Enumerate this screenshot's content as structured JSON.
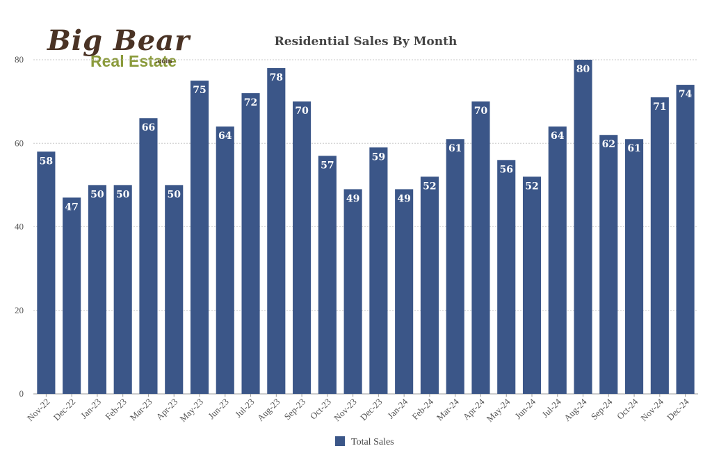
{
  "logo": {
    "line1": "Big Bear",
    "line2": "Real Estate",
    "suffix": ".com",
    "color_dark": "#4a3325",
    "color_green": "#8a9a3a"
  },
  "colors": {
    "bar": "#3b5688",
    "grid": "#c8c8c8",
    "axis": "#999999"
  },
  "chart_data": {
    "type": "bar",
    "title": "Residential Sales By Month",
    "xlabel": "",
    "ylabel": "",
    "ylim": [
      0,
      80
    ],
    "yticks": [
      0,
      20,
      40,
      60,
      80
    ],
    "grid": true,
    "legend_position": "bottom",
    "categories": [
      "Nov-22",
      "Dec-22",
      "Jan-23",
      "Feb-23",
      "Mar-23",
      "Apr-23",
      "May-23",
      "Jun-23",
      "Jul-23",
      "Aug-23",
      "Sep-23",
      "Oct-23",
      "Nov-23",
      "Dec-23",
      "Jan-24",
      "Feb-24",
      "Mar-24",
      "Apr-24",
      "May-24",
      "Jun-24",
      "Jul-24",
      "Aug-24",
      "Sep-24",
      "Oct-24",
      "Nov-24",
      "Dec-24"
    ],
    "series": [
      {
        "name": "Total Sales",
        "values": [
          58,
          47,
          50,
          50,
          66,
          50,
          75,
          64,
          72,
          78,
          70,
          57,
          49,
          59,
          49,
          52,
          61,
          70,
          56,
          52,
          64,
          80,
          62,
          61,
          71,
          74
        ]
      }
    ]
  }
}
